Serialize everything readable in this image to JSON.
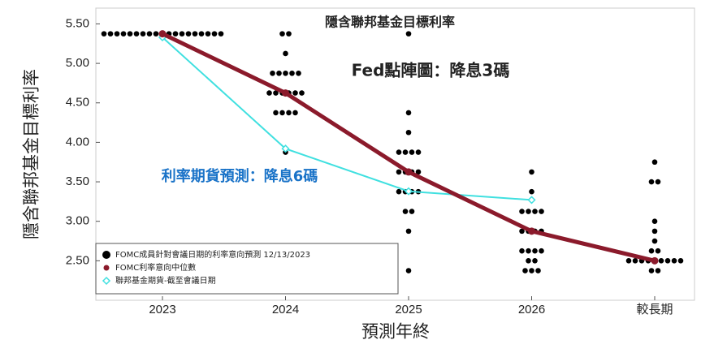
{
  "chart_data": {
    "type": "dotplot",
    "title": "隱含聯邦基金目標利率",
    "y_label": "隱含聯邦基金目標利率",
    "x_label": "預測年終",
    "annotations": [
      "Fed點陣圖：降息3碼",
      "利率期貨預測：降息6碼"
    ],
    "categories": [
      "2023",
      "2024",
      "2025",
      "2026",
      "較長期"
    ],
    "ylim": [
      2.0,
      5.7
    ],
    "yticks": [
      {
        "value": 2.5,
        "label": "2.50"
      },
      {
        "value": 3.0,
        "label": "3.00"
      },
      {
        "value": 3.5,
        "label": "3.50"
      },
      {
        "value": 4.0,
        "label": "4.00"
      },
      {
        "value": 4.5,
        "label": "4.50"
      },
      {
        "value": 5.0,
        "label": "5.00"
      },
      {
        "value": 5.5,
        "label": "5.50"
      }
    ],
    "series": [
      {
        "name": "FOMC成員針對會議日期的利率意向預測 12/13/2023",
        "color": "#000000",
        "values": [
          [
            5.375,
            5.375,
            5.375,
            5.375,
            5.375,
            5.375,
            5.375,
            5.375,
            5.375,
            5.375,
            5.375,
            5.375,
            5.375,
            5.375,
            5.375,
            5.375,
            5.375,
            5.375,
            5.375
          ],
          [
            5.375,
            5.375,
            5.125,
            4.875,
            4.875,
            4.875,
            4.875,
            4.875,
            4.625,
            4.625,
            4.625,
            4.625,
            4.625,
            4.625,
            4.375,
            4.375,
            4.375,
            4.375,
            3.875
          ],
          [
            5.375,
            4.375,
            4.125,
            3.875,
            3.875,
            3.875,
            3.875,
            3.625,
            3.625,
            3.625,
            3.625,
            3.375,
            3.375,
            3.375,
            3.375,
            3.125,
            3.125,
            2.875,
            2.375
          ],
          [
            3.625,
            3.375,
            3.125,
            3.125,
            3.125,
            3.125,
            2.875,
            2.875,
            2.875,
            2.875,
            2.625,
            2.625,
            2.625,
            2.625,
            2.5,
            2.5,
            2.375,
            2.375,
            2.375
          ],
          [
            3.75,
            3.5,
            3.5,
            3.0,
            2.875,
            2.75,
            2.625,
            2.625,
            2.5,
            2.5,
            2.5,
            2.5,
            2.5,
            2.5,
            2.5,
            2.5,
            2.5,
            2.375,
            2.375
          ]
        ]
      },
      {
        "name": "FOMC利率意向中位數",
        "color": "#8b1a2b",
        "values": [
          5.375,
          4.625,
          3.625,
          2.875,
          2.5
        ]
      },
      {
        "name": "聯邦基金期貨-截至會議日期",
        "color": "#40e0e0",
        "values": [
          5.33,
          3.92,
          3.38,
          3.27,
          null
        ]
      }
    ]
  }
}
